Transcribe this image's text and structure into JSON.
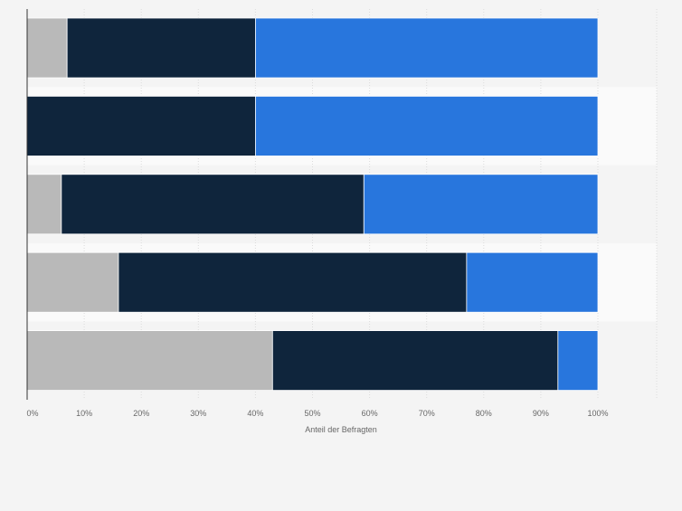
{
  "chart_data": {
    "type": "bar",
    "orientation": "horizontal",
    "stacked": true,
    "xlabel": "Anteil der Befragten",
    "ylabel": "",
    "xlim": [
      0,
      100
    ],
    "x_tick_labels": [
      "0%",
      "10%",
      "20%",
      "30%",
      "40%",
      "50%",
      "60%",
      "70%",
      "80%",
      "90%",
      "100%"
    ],
    "categories": [
      "",
      "",
      "",
      "",
      ""
    ],
    "series": [
      {
        "values": [
          7,
          0,
          6,
          16,
          43
        ],
        "color": "#b9b9b9"
      },
      {
        "values": [
          33,
          40,
          53,
          61,
          50
        ],
        "color": "#0f253c"
      },
      {
        "values": [
          60,
          60,
          41,
          23,
          7
        ],
        "color": "#2876dd"
      }
    ],
    "grid": true,
    "legend": "none"
  }
}
